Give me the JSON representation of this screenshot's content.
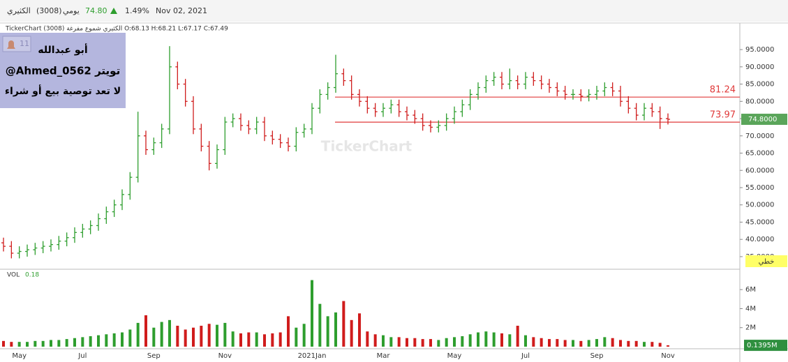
{
  "header": {
    "symbol": "الكثيري",
    "code": "(3008)",
    "period": "يومي",
    "price": "74.80",
    "change": "1.49%",
    "date": "Nov 02, 2021"
  },
  "chart_data": {
    "type": "ohlc",
    "info_line": "TickerChart الكثيري شموع مفرغة (3008) O:68.13 H:68.21 L:67.17 C:67.49",
    "annotation": {
      "badge": "11",
      "lines": [
        "أبو عبدالله",
        "@Ahmed_0562 تويتر",
        "لا تعد توصية بيع أو شراء"
      ]
    },
    "watermark": "TickerChart",
    "categories": [
      null,
      null,
      "May",
      null,
      null,
      null,
      null,
      null,
      null,
      null,
      "Jul",
      null,
      null,
      null,
      null,
      null,
      null,
      null,
      null,
      "Sep",
      null,
      null,
      null,
      null,
      null,
      null,
      null,
      null,
      "Nov",
      null,
      null,
      null,
      null,
      null,
      null,
      null,
      null,
      null,
      null,
      "2021Jan",
      null,
      null,
      null,
      null,
      null,
      null,
      null,
      null,
      "Mar",
      null,
      null,
      null,
      null,
      null,
      null,
      null,
      null,
      "May",
      null,
      null,
      null,
      null,
      null,
      null,
      null,
      null,
      "Jul",
      null,
      null,
      null,
      null,
      null,
      null,
      null,
      null,
      "Sep",
      null,
      null,
      null,
      null,
      null,
      null,
      null,
      null,
      "Nov"
    ],
    "open": [
      39,
      38,
      36,
      36.5,
      37,
      37.5,
      38,
      38.5,
      39.5,
      40.5,
      42,
      43,
      44,
      46,
      48,
      50,
      53,
      58,
      70,
      66,
      68,
      72,
      90,
      85,
      80,
      72,
      67,
      62,
      66,
      74,
      75,
      73,
      72,
      74,
      70,
      69,
      68,
      67,
      71,
      72,
      78,
      82,
      84,
      88,
      86,
      82,
      80,
      78,
      77,
      78,
      79,
      77,
      76,
      75,
      73,
      72.5,
      73,
      75,
      77,
      79,
      82,
      84,
      86,
      87,
      85,
      86,
      85,
      87,
      86,
      85,
      84,
      83,
      82,
      82,
      81.5,
      82,
      83,
      84,
      83,
      80,
      78,
      76,
      78,
      77,
      75
    ],
    "high": [
      40.5,
      39.5,
      38,
      38.5,
      39,
      39.5,
      40,
      41,
      42,
      43.5,
      44.5,
      45.5,
      47.5,
      49.5,
      51.5,
      54.5,
      59.5,
      77,
      71.5,
      69.5,
      73.5,
      96,
      91.5,
      86.5,
      81.5,
      73.5,
      68.5,
      67.5,
      75.5,
      76.5,
      76.5,
      74.5,
      75.5,
      75.5,
      71.5,
      70.5,
      69.5,
      72.5,
      73.5,
      79.5,
      83.5,
      85.5,
      93.5,
      89.5,
      87.5,
      83.5,
      81.5,
      79.5,
      79.5,
      80.5,
      80.5,
      78.5,
      77.5,
      76.5,
      74.5,
      74.5,
      76.5,
      78.5,
      80.5,
      83.5,
      85.5,
      87.5,
      88.5,
      88.5,
      89.5,
      87.5,
      88.5,
      88.5,
      87.5,
      86.5,
      85.5,
      84.5,
      83.5,
      83.5,
      83.5,
      84.5,
      85.5,
      85.5,
      84.5,
      81.5,
      79.5,
      79.5,
      79.5,
      78.5,
      76.5
    ],
    "low": [
      36.5,
      34.5,
      34.5,
      35,
      35.5,
      36,
      36.5,
      37,
      38,
      39,
      40.5,
      41.5,
      42.5,
      44.5,
      46.5,
      48.5,
      51.5,
      56.5,
      64.5,
      64.5,
      66.5,
      70.5,
      83.5,
      78.5,
      70.5,
      65.5,
      60,
      60.5,
      64.5,
      72.5,
      71.5,
      70.5,
      70.5,
      68.5,
      67.5,
      66.5,
      65.5,
      65.5,
      69.5,
      70.5,
      76.5,
      80.5,
      82.5,
      84.5,
      80.5,
      78.5,
      76.5,
      75.5,
      75.5,
      76.5,
      75.5,
      74.5,
      73.5,
      71.5,
      71,
      71,
      71.5,
      73.5,
      75.5,
      77.5,
      80.5,
      82.5,
      84.5,
      83.5,
      83.5,
      83.5,
      83.5,
      84.5,
      83.5,
      82.5,
      81.5,
      80.5,
      80.5,
      80,
      80,
      80.5,
      81.5,
      81.5,
      78.5,
      76.5,
      74.5,
      74.5,
      75.5,
      72,
      73.3
    ],
    "close": [
      38,
      36,
      36.5,
      37,
      37.5,
      38,
      38.5,
      39.5,
      40.5,
      42,
      43,
      44,
      46,
      48,
      50,
      53,
      58,
      70,
      66,
      68,
      72,
      90,
      85,
      80,
      72,
      67,
      62,
      66,
      74,
      75,
      73,
      72,
      74,
      70,
      69,
      68,
      67,
      71,
      72,
      78,
      82,
      84,
      88,
      86,
      82,
      80,
      78,
      77,
      78,
      79,
      77,
      76,
      75,
      73,
      72.5,
      73,
      75,
      77,
      79,
      82,
      84,
      86,
      87,
      85,
      86,
      85,
      87,
      86,
      85,
      84,
      83,
      82,
      82,
      81.5,
      82,
      83,
      84,
      83,
      80,
      78,
      76,
      78,
      77,
      75,
      74.8
    ],
    "volume": [
      0.6,
      0.5,
      0.5,
      0.5,
      0.6,
      0.6,
      0.7,
      0.7,
      0.8,
      0.9,
      1,
      1.1,
      1.2,
      1.3,
      1.4,
      1.5,
      1.8,
      2.5,
      3.3,
      2,
      2.6,
      2.8,
      2.2,
      1.8,
      2,
      2.2,
      2.4,
      2.3,
      2.5,
      1.6,
      1.4,
      1.5,
      1.5,
      1.3,
      1.4,
      1.5,
      3.2,
      2,
      2.4,
      7,
      4.5,
      3.2,
      3.6,
      4.8,
      2.8,
      3.5,
      1.6,
      1.3,
      1.2,
      1,
      1,
      0.9,
      0.9,
      0.8,
      0.8,
      0.7,
      0.9,
      1,
      1.1,
      1.3,
      1.5,
      1.6,
      1.5,
      1.4,
      1.3,
      2.2,
      1.2,
      1,
      0.9,
      0.8,
      0.8,
      0.7,
      0.7,
      0.6,
      0.7,
      0.8,
      1,
      0.9,
      0.7,
      0.6,
      0.6,
      0.5,
      0.5,
      0.4,
      0.1395
    ],
    "up_color": "#2e9e2e",
    "down_color": "#d01c1c",
    "hline_color": "#e03a3a",
    "hlines": [
      81.24,
      73.97
    ],
    "ylim": [
      31.35,
      102.7
    ],
    "yticks": [
      {
        "value": 35,
        "label": "35.0000"
      },
      {
        "value": 40,
        "label": "40.0000"
      },
      {
        "value": 45,
        "label": "45.0000"
      },
      {
        "value": 50,
        "label": "50.0000"
      },
      {
        "value": 55,
        "label": "55.0000"
      },
      {
        "value": 60,
        "label": "60.0000"
      },
      {
        "value": 65,
        "label": "65.0000"
      },
      {
        "value": 70,
        "label": "70.0000"
      },
      {
        "value": 75,
        "label": "75.0000"
      },
      {
        "value": 80,
        "label": "80.0000"
      },
      {
        "value": 85,
        "label": "85.0000"
      },
      {
        "value": 90,
        "label": "90.0000"
      },
      {
        "value": 95,
        "label": "95.0000"
      }
    ],
    "last_price_label": "74.8000",
    "chart_style_label": "خطي",
    "volume_title": "VOL",
    "volume_indicator": "0.18",
    "volume_ylim": [
      0,
      8.07
    ],
    "volume_yticks": [
      {
        "value": 2,
        "label": "2M"
      },
      {
        "value": 4,
        "label": "4M"
      },
      {
        "value": 6,
        "label": "6M"
      }
    ],
    "last_volume_label": "0.1395M"
  }
}
